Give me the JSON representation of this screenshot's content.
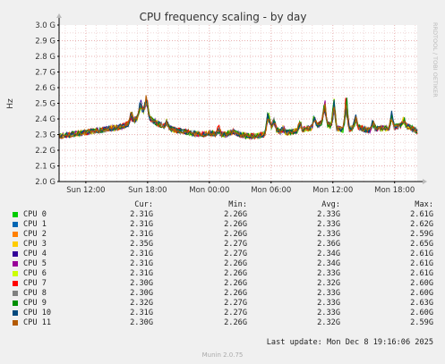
{
  "chart_data": {
    "type": "line",
    "title": "CPU frequency scaling - by day",
    "ylabel": "Hz",
    "side_label": "RRDTOOL / TOBI OETIKER",
    "y_ticks": [
      "2.0 G",
      "2.1 G",
      "2.2 G",
      "2.3 G",
      "2.4 G",
      "2.5 G",
      "2.6 G",
      "2.7 G",
      "2.8 G",
      "2.9 G",
      "3.0 G"
    ],
    "ylim": [
      2.0,
      3.0
    ],
    "x_ticks": [
      "Sun 12:00",
      "Sun 18:00",
      "Mon 00:00",
      "Mon 06:00",
      "Mon 12:00",
      "Mon 18:00"
    ],
    "x_tick_hours": [
      12,
      18,
      24,
      30,
      36,
      42
    ],
    "x_range_hours": [
      9.4,
      44.2
    ],
    "grid": true,
    "profile": [
      [
        9.4,
        2.29
      ],
      [
        10.5,
        2.3
      ],
      [
        11.5,
        2.31
      ],
      [
        12.5,
        2.32
      ],
      [
        13.5,
        2.33
      ],
      [
        14.5,
        2.34
      ],
      [
        15.5,
        2.35
      ],
      [
        16.5,
        2.38
      ],
      [
        17.2,
        2.42
      ],
      [
        17.7,
        2.46
      ],
      [
        18.3,
        2.4
      ],
      [
        19.0,
        2.37
      ],
      [
        19.8,
        2.35
      ],
      [
        20.6,
        2.33
      ],
      [
        21.5,
        2.32
      ],
      [
        22.3,
        2.31
      ],
      [
        23.2,
        2.3
      ],
      [
        24.0,
        2.31
      ],
      [
        24.8,
        2.3
      ],
      [
        25.6,
        2.3
      ],
      [
        26.3,
        2.32
      ],
      [
        27.0,
        2.3
      ],
      [
        27.8,
        2.29
      ],
      [
        28.6,
        2.29
      ],
      [
        29.3,
        2.3
      ],
      [
        29.9,
        2.36
      ],
      [
        30.5,
        2.33
      ],
      [
        31.3,
        2.31
      ],
      [
        32.1,
        2.32
      ],
      [
        32.9,
        2.33
      ],
      [
        33.6,
        2.34
      ],
      [
        34.3,
        2.35
      ],
      [
        35.0,
        2.38
      ],
      [
        35.7,
        2.36
      ],
      [
        36.4,
        2.34
      ],
      [
        37.1,
        2.33
      ],
      [
        37.8,
        2.34
      ],
      [
        38.5,
        2.35
      ],
      [
        39.2,
        2.33
      ],
      [
        39.9,
        2.33
      ],
      [
        40.6,
        2.34
      ],
      [
        41.3,
        2.34
      ],
      [
        42.0,
        2.35
      ],
      [
        42.7,
        2.36
      ],
      [
        43.4,
        2.35
      ],
      [
        44.2,
        2.32
      ]
    ],
    "spikes": [
      [
        16.4,
        0.08
      ],
      [
        17.3,
        0.1
      ],
      [
        17.9,
        0.12
      ],
      [
        19.9,
        0.05
      ],
      [
        24.9,
        0.06
      ],
      [
        29.7,
        0.13
      ],
      [
        30.3,
        0.07
      ],
      [
        31.2,
        0.04
      ],
      [
        32.8,
        0.06
      ],
      [
        34.2,
        0.1
      ],
      [
        35.2,
        0.18
      ],
      [
        36.1,
        0.22
      ],
      [
        37.3,
        0.28
      ],
      [
        38.2,
        0.1
      ],
      [
        39.9,
        0.08
      ],
      [
        41.7,
        0.1
      ],
      [
        42.9,
        0.06
      ]
    ],
    "series": [
      {
        "name": "CPU 0",
        "color": "#00cc00",
        "cur": "2.31G",
        "min": "2.26G",
        "avg": "2.33G",
        "max": "2.61G"
      },
      {
        "name": "CPU 1",
        "color": "#0066b3",
        "cur": "2.31G",
        "min": "2.26G",
        "avg": "2.33G",
        "max": "2.62G"
      },
      {
        "name": "CPU 2",
        "color": "#ff8000",
        "cur": "2.31G",
        "min": "2.26G",
        "avg": "2.33G",
        "max": "2.59G"
      },
      {
        "name": "CPU 3",
        "color": "#ffcc00",
        "cur": "2.35G",
        "min": "2.27G",
        "avg": "2.36G",
        "max": "2.65G"
      },
      {
        "name": "CPU 4",
        "color": "#330099",
        "cur": "2.31G",
        "min": "2.27G",
        "avg": "2.34G",
        "max": "2.61G"
      },
      {
        "name": "CPU 5",
        "color": "#990099",
        "cur": "2.31G",
        "min": "2.26G",
        "avg": "2.34G",
        "max": "2.61G"
      },
      {
        "name": "CPU 6",
        "color": "#ccff00",
        "cur": "2.31G",
        "min": "2.26G",
        "avg": "2.33G",
        "max": "2.61G"
      },
      {
        "name": "CPU 7",
        "color": "#ff0000",
        "cur": "2.30G",
        "min": "2.26G",
        "avg": "2.32G",
        "max": "2.60G"
      },
      {
        "name": "CPU 8",
        "color": "#808080",
        "cur": "2.30G",
        "min": "2.26G",
        "avg": "2.33G",
        "max": "2.60G"
      },
      {
        "name": "CPU 9",
        "color": "#008f00",
        "cur": "2.32G",
        "min": "2.27G",
        "avg": "2.33G",
        "max": "2.63G"
      },
      {
        "name": "CPU 10",
        "color": "#00487d",
        "cur": "2.31G",
        "min": "2.27G",
        "avg": "2.33G",
        "max": "2.60G"
      },
      {
        "name": "CPU 11",
        "color": "#b35a00",
        "cur": "2.30G",
        "min": "2.26G",
        "avg": "2.32G",
        "max": "2.59G"
      }
    ]
  },
  "legend": {
    "headers": {
      "cur": "Cur:",
      "min": "Min:",
      "avg": "Avg:",
      "max": "Max:"
    }
  },
  "footer": {
    "last_update": "Last update: Mon Dec  8 19:16:06 2025",
    "version": "Munin 2.0.75"
  }
}
